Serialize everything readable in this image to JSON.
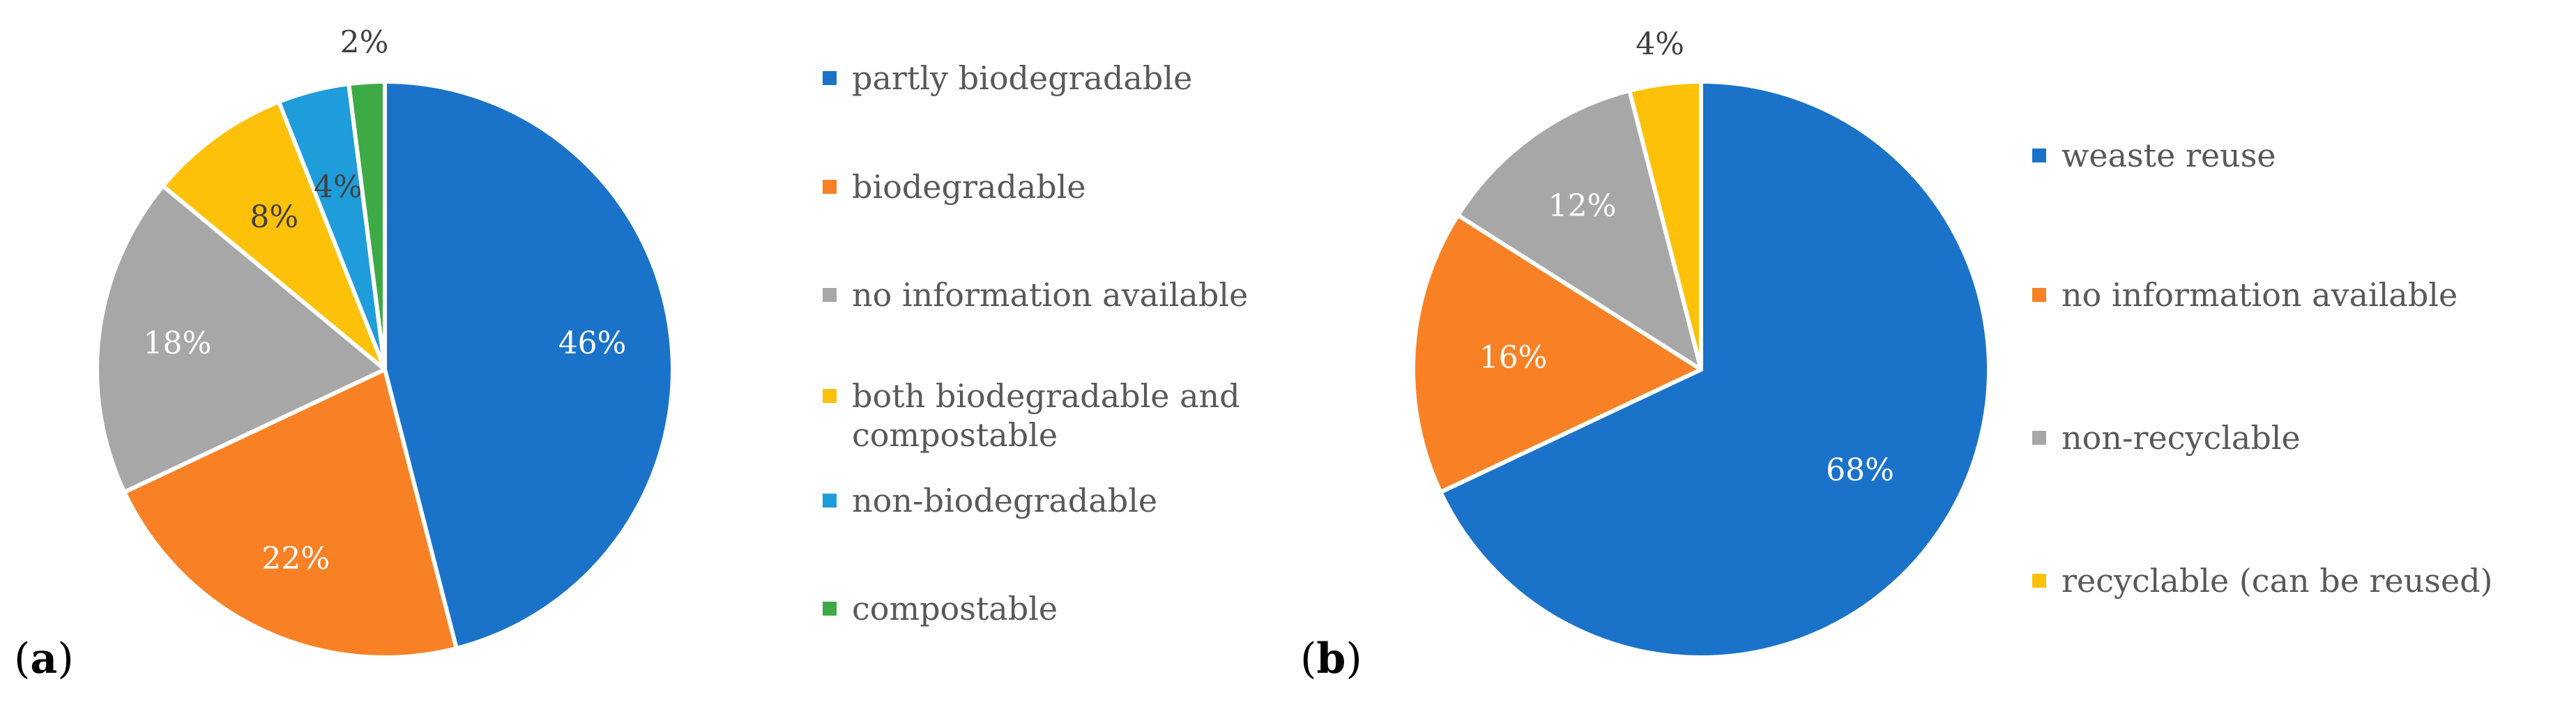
{
  "chart_data": [
    {
      "type": "pie",
      "panel_label": "a",
      "slices": [
        {
          "label": "partly biodegradable",
          "value": 46,
          "display": "46%",
          "color": "#1b73c9"
        },
        {
          "label": "biodegradable",
          "value": 22,
          "display": "22%",
          "color": "#f88125"
        },
        {
          "label": "no information available",
          "value": 18,
          "display": "18%",
          "color": "#a7a7a7"
        },
        {
          "label": "both biodegradable and compostable",
          "value": 8,
          "display": "8%",
          "color": "#fec10a"
        },
        {
          "label": "non-biodegradable",
          "value": 4,
          "display": "4%",
          "color": "#1f9ddb"
        },
        {
          "label": "compostable",
          "value": 2,
          "display": "2%",
          "color": "#3eaa45"
        }
      ],
      "legend": [
        {
          "lines": [
            "partly biodegradable"
          ],
          "color": "#1b73c9"
        },
        {
          "lines": [
            "biodegradable"
          ],
          "color": "#f88125"
        },
        {
          "lines": [
            "no information available"
          ],
          "color": "#a7a7a7"
        },
        {
          "lines": [
            "both biodegradable and",
            "compostable"
          ],
          "color": "#fec10a"
        },
        {
          "lines": [
            "non-biodegradable"
          ],
          "color": "#1f9ddb"
        },
        {
          "lines": [
            "compostable"
          ],
          "color": "#3eaa45"
        }
      ],
      "legend_placement": "right"
    },
    {
      "type": "pie",
      "panel_label": "b",
      "slices": [
        {
          "label": "weaste reuse",
          "value": 68,
          "display": "68%",
          "color": "#1b73c9"
        },
        {
          "label": "no information available",
          "value": 16,
          "display": "16%",
          "color": "#f88125"
        },
        {
          "label": "non-recyclable",
          "value": 12,
          "display": "12%",
          "color": "#a7a7a7"
        },
        {
          "label": "recyclable (can be reused)",
          "value": 4,
          "display": "4%",
          "color": "#fec10a"
        }
      ],
      "legend": [
        {
          "lines": [
            "weaste reuse"
          ],
          "color": "#1b73c9"
        },
        {
          "lines": [
            "no information available"
          ],
          "color": "#f88125"
        },
        {
          "lines": [
            "non-recyclable"
          ],
          "color": "#a7a7a7"
        },
        {
          "lines": [
            "recyclable (can be reused)"
          ],
          "color": "#fec10a"
        }
      ],
      "legend_placement": "right"
    }
  ]
}
